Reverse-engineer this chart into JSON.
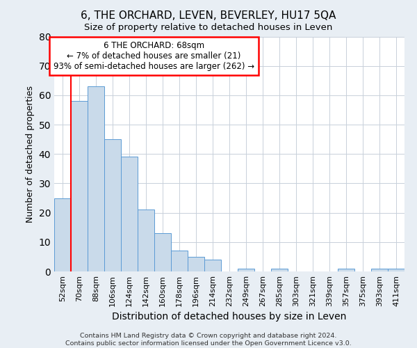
{
  "title": "6, THE ORCHARD, LEVEN, BEVERLEY, HU17 5QA",
  "subtitle": "Size of property relative to detached houses in Leven",
  "xlabel": "Distribution of detached houses by size in Leven",
  "ylabel": "Number of detached properties",
  "bar_labels": [
    "52sqm",
    "70sqm",
    "88sqm",
    "106sqm",
    "124sqm",
    "142sqm",
    "160sqm",
    "178sqm",
    "196sqm",
    "214sqm",
    "232sqm",
    "249sqm",
    "267sqm",
    "285sqm",
    "303sqm",
    "321sqm",
    "339sqm",
    "357sqm",
    "375sqm",
    "393sqm",
    "411sqm"
  ],
  "bar_values": [
    25,
    58,
    63,
    45,
    39,
    21,
    13,
    7,
    5,
    4,
    0,
    1,
    0,
    1,
    0,
    0,
    0,
    1,
    0,
    1,
    1
  ],
  "bar_color": "#c9daea",
  "bar_edgecolor": "#5b9bd5",
  "ylim": [
    0,
    80
  ],
  "yticks": [
    0,
    10,
    20,
    30,
    40,
    50,
    60,
    70,
    80
  ],
  "annotation_text_line1": "6 THE ORCHARD: 68sqm",
  "annotation_text_line2": "← 7% of detached houses are smaller (21)",
  "annotation_text_line3": "93% of semi-detached houses are larger (262) →",
  "red_line_x": 0.5,
  "footer_line1": "Contains HM Land Registry data © Crown copyright and database right 2024.",
  "footer_line2": "Contains public sector information licensed under the Open Government Licence v3.0.",
  "bg_color": "#e8eef4",
  "plot_bg_color": "#ffffff",
  "grid_color": "#c8d0da"
}
